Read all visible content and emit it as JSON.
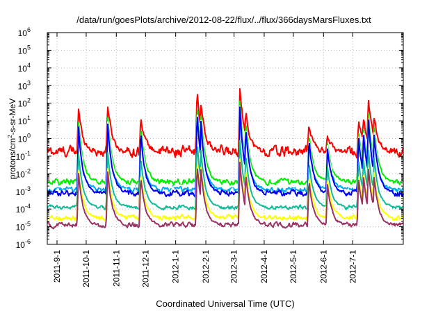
{
  "chart_data": {
    "type": "line",
    "title": "/data/run/goesPlots/archive/2012-08-22/flux/../flux/366daysMarsFluxes.txt",
    "xlabel": "Coordinated Universal Time (UTC)",
    "ylabel": {
      "pre": "protons/cm",
      "sup": "2",
      "post": "-s-sr-MeV"
    },
    "y_scale": "log",
    "ylim_exp": [
      -6,
      6
    ],
    "y_tick_labels": [
      {
        "base": "10",
        "exp": "6"
      },
      {
        "base": "10",
        "exp": "5"
      },
      {
        "base": "10",
        "exp": "4"
      },
      {
        "base": "10",
        "exp": "3"
      },
      {
        "base": "10",
        "exp": "2"
      },
      {
        "base": "10",
        "exp": "1"
      },
      {
        "base": "10",
        "exp": "0"
      },
      {
        "base": "10",
        "exp": "-1"
      },
      {
        "base": "10",
        "exp": "-2"
      },
      {
        "base": "10",
        "exp": "-3"
      },
      {
        "base": "10",
        "exp": "-4"
      },
      {
        "base": "10",
        "exp": "-5"
      },
      {
        "base": "10",
        "exp": "-6"
      }
    ],
    "x_range": [
      "2011-08-22",
      "2012-08-22"
    ],
    "x_tick_labels": [
      "2011-9-1",
      "2011-10-1",
      "2011-11-1",
      "2011-12-1",
      "2012-1-1",
      "2012-2-1",
      "2012-3-1",
      "2012-4-1",
      "2012-5-1",
      "2012-6-1",
      "2012-7-1"
    ],
    "x_tick_dates": [
      "2011-09-01",
      "2011-10-01",
      "2011-11-01",
      "2011-12-01",
      "2012-01-01",
      "2012-02-01",
      "2012-03-01",
      "2012-04-01",
      "2012-05-01",
      "2012-06-01",
      "2012-07-01"
    ],
    "grid": true,
    "legend": "none",
    "events": [
      {
        "date": "2011-09-23",
        "peak_log": 1.7
      },
      {
        "date": "2011-10-23",
        "peak_log": 2.0
      },
      {
        "date": "2011-11-26",
        "peak_log": 1.3
      },
      {
        "date": "2012-01-23",
        "peak_log": 2.8
      },
      {
        "date": "2012-01-27",
        "peak_log": 2.0
      },
      {
        "date": "2012-03-07",
        "peak_log": 3.0
      },
      {
        "date": "2012-03-13",
        "peak_log": 1.6
      },
      {
        "date": "2012-05-17",
        "peak_log": 0.8
      },
      {
        "date": "2012-06-05",
        "peak_log": 0.2
      },
      {
        "date": "2012-07-07",
        "peak_log": 1.0
      },
      {
        "date": "2012-07-12",
        "peak_log": 1.2
      },
      {
        "date": "2012-07-17",
        "peak_log": 2.3
      },
      {
        "date": "2012-07-23",
        "peak_log": 1.2
      }
    ],
    "series": [
      {
        "color": "#ff0000",
        "baseline_log": -0.75,
        "noise": 0.55,
        "event_scale": 1.0
      },
      {
        "color": "#00ee00",
        "baseline_log": -2.45,
        "noise": 0.3,
        "event_scale": 0.85
      },
      {
        "color": "#00aaee",
        "baseline_log": -2.9,
        "noise": 0.3,
        "event_scale": 0.75
      },
      {
        "color": "#ffffff",
        "baseline_log": -2.7,
        "noise": 0.15,
        "event_scale": 0.8
      },
      {
        "color": "#0000ee",
        "baseline_log": -3.1,
        "noise": 0.3,
        "event_scale": 0.8
      },
      {
        "color": "#11bb99",
        "baseline_log": -3.9,
        "noise": 0.2,
        "event_scale": 0.55
      },
      {
        "color": "#ffff00",
        "baseline_log": -4.5,
        "noise": 0.25,
        "event_scale": 0.45
      },
      {
        "color": "#993366",
        "baseline_log": -4.9,
        "noise": 0.25,
        "event_scale": 0.45
      }
    ]
  }
}
